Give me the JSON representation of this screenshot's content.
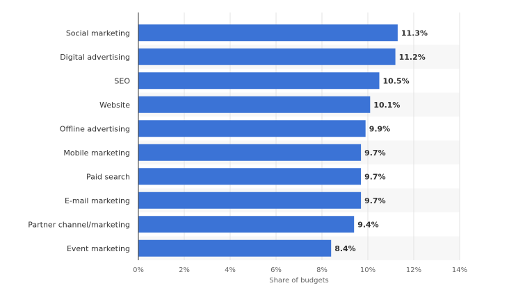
{
  "chart_data": {
    "type": "bar",
    "orientation": "horizontal",
    "categories": [
      "Social marketing",
      "Digital advertising",
      "SEO",
      "Website",
      "Offline advertising",
      "Mobile marketing",
      "Paid search",
      "E-mail marketing",
      "Partner channel/marketing",
      "Event marketing"
    ],
    "values": [
      11.3,
      11.2,
      10.5,
      10.1,
      9.9,
      9.7,
      9.7,
      9.7,
      9.4,
      8.4
    ],
    "value_labels": [
      "11.3%",
      "11.2%",
      "10.5%",
      "10.1%",
      "9.9%",
      "9.7%",
      "9.7%",
      "9.7%",
      "9.4%",
      "8.4%"
    ],
    "title": "",
    "xlabel": "Share of budgets",
    "ylabel": "",
    "xlim": [
      0,
      14
    ],
    "xticks": [
      "0%",
      "2%",
      "4%",
      "6%",
      "8%",
      "10%",
      "12%",
      "14%"
    ],
    "grid": true,
    "bar_color": "#3b73d6"
  }
}
